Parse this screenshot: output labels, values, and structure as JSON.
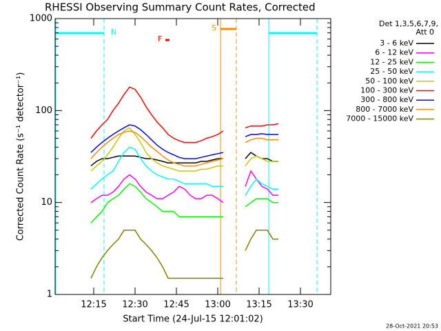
{
  "chart_data": {
    "type": "line",
    "title": "RHESSI Observing Summary Count Rates, Corrected",
    "xlabel": "Start Time (24-Jul-15 12:01:02)",
    "ylabel": "Corrected Count Rate (s⁻¹ detector⁻¹)",
    "legend_title": [
      "Det 1,3,5,6,7,9,",
      "Att 0"
    ],
    "footer": "28-Oct-2021 20:53",
    "annotations": [
      "N",
      "S",
      "F"
    ],
    "log_y": true,
    "xlim": [
      721,
      821
    ],
    "ylim": [
      1,
      1000
    ],
    "xticks": [
      {
        "value": 735,
        "label": "12:15"
      },
      {
        "value": 750,
        "label": "12:30"
      },
      {
        "value": 765,
        "label": "12:45"
      },
      {
        "value": 780,
        "label": "13:00"
      },
      {
        "value": 795,
        "label": "13:15"
      },
      {
        "value": 810,
        "label": "13:30"
      }
    ],
    "yticks": [
      1,
      10,
      100,
      1000
    ],
    "x": [
      734,
      736,
      738,
      740,
      742,
      744,
      746,
      748,
      750,
      752,
      754,
      756,
      758,
      760,
      762,
      764,
      766,
      768,
      770,
      772,
      774,
      776,
      778,
      780,
      782,
      786,
      790,
      792,
      794,
      796,
      798,
      800,
      802
    ],
    "series": [
      {
        "name": "3 - 6 keV",
        "color": "#000000",
        "values": [
          25,
          28,
          30,
          30,
          31,
          32,
          32,
          32,
          32,
          31,
          30,
          30,
          29,
          28,
          27,
          27,
          27,
          27,
          27,
          27,
          28,
          28,
          29,
          30,
          30,
          null,
          30,
          35,
          32,
          30,
          30,
          28,
          28
        ]
      },
      {
        "name": "6 - 12 keV",
        "color": "#ff00ff",
        "values": [
          10,
          11,
          12,
          12,
          13,
          15,
          18,
          20,
          18,
          15,
          13,
          12,
          11,
          11,
          12,
          13,
          15,
          14,
          12,
          11,
          11,
          12,
          12,
          11,
          10,
          null,
          15,
          22,
          18,
          15,
          14,
          12,
          12
        ]
      },
      {
        "name": "12 - 25 keV",
        "color": "#00ff00",
        "values": [
          6,
          7,
          8,
          10,
          11,
          12,
          14,
          16,
          15,
          13,
          11,
          10,
          9,
          8,
          8,
          8,
          7,
          7,
          7,
          7,
          7,
          7,
          7,
          7,
          7,
          null,
          9,
          10,
          11,
          11,
          11,
          10,
          10
        ]
      },
      {
        "name": "25 - 50 keV",
        "color": "#00ffff",
        "values": [
          14,
          16,
          18,
          20,
          22,
          28,
          35,
          40,
          38,
          30,
          25,
          22,
          20,
          19,
          18,
          18,
          17,
          16,
          16,
          16,
          16,
          16,
          15,
          15,
          15,
          null,
          12,
          15,
          18,
          16,
          15,
          14,
          14
        ]
      },
      {
        "name": "50 - 100 keV",
        "color": "#c8c800",
        "values": [
          22,
          25,
          28,
          33,
          40,
          50,
          60,
          65,
          55,
          45,
          35,
          30,
          27,
          25,
          24,
          23,
          22,
          22,
          22,
          22,
          23,
          23,
          24,
          25,
          25,
          null,
          25,
          30,
          32,
          30,
          28,
          28,
          28
        ]
      },
      {
        "name": "100 - 300 keV",
        "color": "#ff0000",
        "values": [
          50,
          60,
          70,
          80,
          100,
          120,
          150,
          180,
          170,
          140,
          110,
          90,
          75,
          65,
          55,
          50,
          47,
          45,
          45,
          45,
          47,
          50,
          52,
          55,
          60,
          null,
          65,
          68,
          68,
          68,
          70,
          70,
          72
        ]
      },
      {
        "name": "300 - 800 keV",
        "color": "#0000ff",
        "values": [
          35,
          40,
          45,
          50,
          55,
          60,
          65,
          70,
          68,
          62,
          55,
          48,
          42,
          38,
          35,
          33,
          31,
          30,
          30,
          30,
          31,
          32,
          33,
          34,
          35,
          null,
          52,
          55,
          55,
          56,
          55,
          55,
          55
        ]
      },
      {
        "name": "800 - 7000 keV",
        "color": "#ff8c00",
        "values": [
          30,
          35,
          40,
          45,
          50,
          55,
          58,
          60,
          58,
          52,
          46,
          40,
          36,
          32,
          29,
          27,
          26,
          25,
          25,
          25,
          26,
          27,
          28,
          29,
          30,
          null,
          45,
          48,
          50,
          50,
          48,
          48,
          48
        ]
      },
      {
        "name": "7000 - 15000 keV",
        "color": "#808000",
        "values": [
          1.5,
          2,
          2.5,
          3,
          3.5,
          4,
          5,
          5,
          5,
          4,
          3.5,
          3,
          2.5,
          2,
          1.5,
          1.5,
          1.5,
          1.5,
          1.5,
          1.5,
          1.5,
          1.5,
          1.5,
          1.5,
          1.5,
          null,
          3,
          4,
          5,
          5,
          5,
          4,
          4
        ]
      }
    ]
  }
}
